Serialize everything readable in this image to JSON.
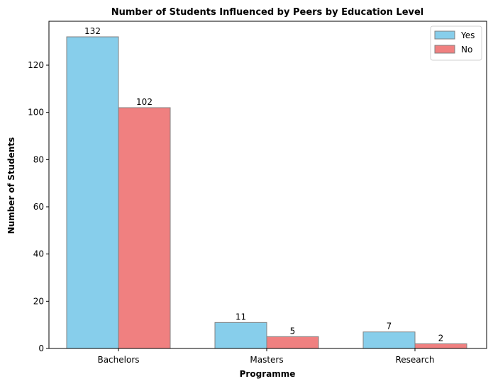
{
  "chart_data": {
    "type": "bar",
    "title": "Number of Students Influenced by Peers by Education Level",
    "xlabel": "Programme",
    "ylabel": "Number of Students",
    "categories": [
      "Bachelors",
      "Masters",
      "Research"
    ],
    "series": [
      {
        "name": "Yes",
        "values": [
          132,
          11,
          7
        ],
        "color": "#87CEEB"
      },
      {
        "name": "No",
        "values": [
          102,
          5,
          2
        ],
        "color": "#F08080"
      }
    ],
    "ylim": [
      0,
      138.6
    ],
    "yticks": [
      0,
      20,
      40,
      60,
      80,
      100,
      120
    ],
    "grid": false,
    "legend_position": "top-right",
    "bar_edge_color": "#808080"
  }
}
